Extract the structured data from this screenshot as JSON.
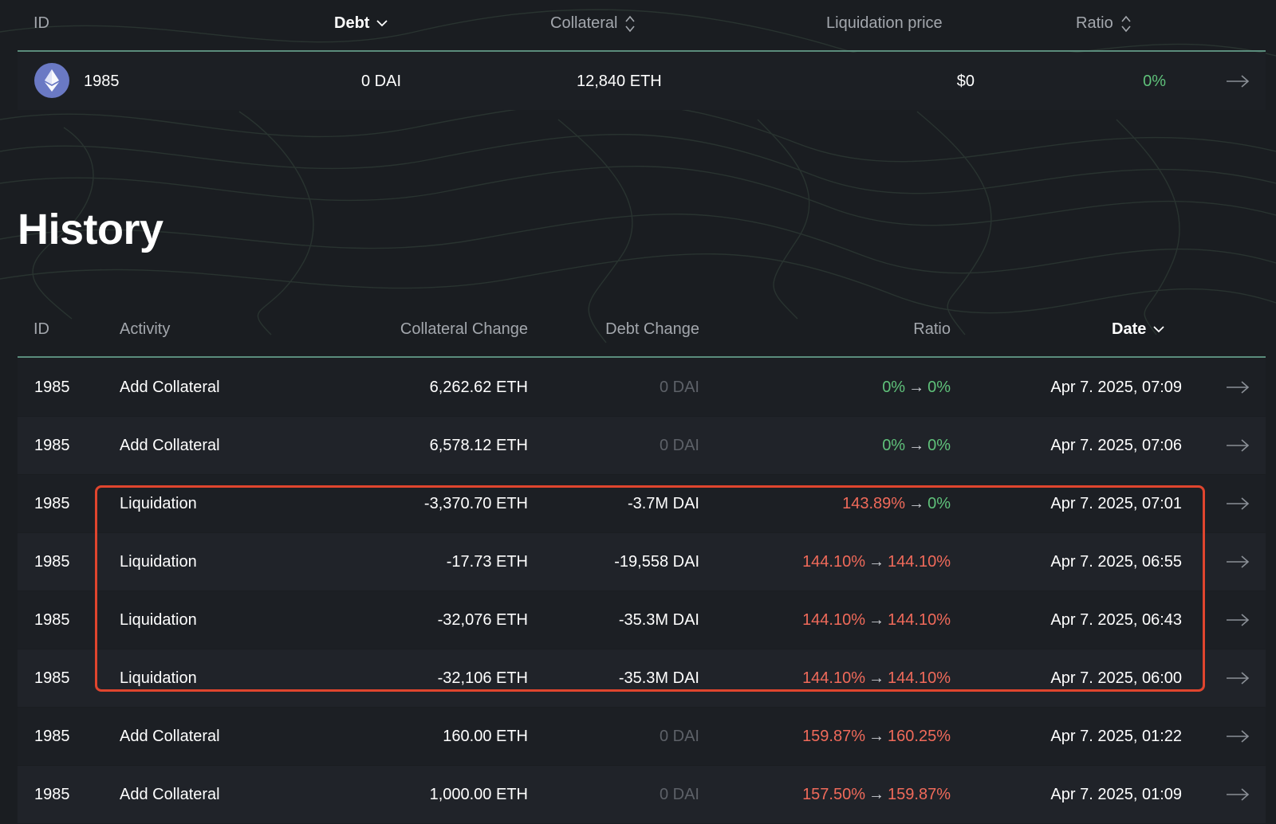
{
  "vaults": {
    "headers": {
      "id": "ID",
      "debt": "Debt",
      "collateral": "Collateral",
      "liquidation_price": "Liquidation price",
      "ratio": "Ratio"
    },
    "row": {
      "id": "1985",
      "debt": "0 DAI",
      "collateral": "12,840 ETH",
      "liquidation_price": "$0",
      "ratio": "0%",
      "icon": "ethereum-icon"
    }
  },
  "history": {
    "title": "History",
    "headers": {
      "id": "ID",
      "activity": "Activity",
      "collateral_change": "Collateral Change",
      "debt_change": "Debt Change",
      "ratio": "Ratio",
      "date": "Date"
    },
    "rows": [
      {
        "id": "1985",
        "activity": "Add Collateral",
        "collateral_change": "6,262.62 ETH",
        "debt_change": "0 DAI",
        "ratio_from": "0%",
        "ratio_to": "0%",
        "date": "Apr 7. 2025, 07:09"
      },
      {
        "id": "1985",
        "activity": "Add Collateral",
        "collateral_change": "6,578.12 ETH",
        "debt_change": "0 DAI",
        "ratio_from": "0%",
        "ratio_to": "0%",
        "date": "Apr 7. 2025, 07:06"
      },
      {
        "id": "1985",
        "activity": "Liquidation",
        "collateral_change": "-3,370.70 ETH",
        "debt_change": "-3.7M DAI",
        "ratio_from": "143.89%",
        "ratio_to": "0%",
        "date": "Apr 7. 2025, 07:01"
      },
      {
        "id": "1985",
        "activity": "Liquidation",
        "collateral_change": "-17.73 ETH",
        "debt_change": "-19,558 DAI",
        "ratio_from": "144.10%",
        "ratio_to": "144.10%",
        "date": "Apr 7. 2025, 06:55"
      },
      {
        "id": "1985",
        "activity": "Liquidation",
        "collateral_change": "-32,076 ETH",
        "debt_change": "-35.3M DAI",
        "ratio_from": "144.10%",
        "ratio_to": "144.10%",
        "date": "Apr 7. 2025, 06:43"
      },
      {
        "id": "1985",
        "activity": "Liquidation",
        "collateral_change": "-32,106 ETH",
        "debt_change": "-35.3M DAI",
        "ratio_from": "144.10%",
        "ratio_to": "144.10%",
        "date": "Apr 7. 2025, 06:00"
      },
      {
        "id": "1985",
        "activity": "Add Collateral",
        "collateral_change": "160.00 ETH",
        "debt_change": "0 DAI",
        "ratio_from": "159.87%",
        "ratio_to": "160.25%",
        "date": "Apr 7. 2025, 01:22"
      },
      {
        "id": "1985",
        "activity": "Add Collateral",
        "collateral_change": "1,000.00 ETH",
        "debt_change": "0 DAI",
        "ratio_from": "157.50%",
        "ratio_to": "159.87%",
        "date": "Apr 7. 2025, 01:09"
      }
    ]
  },
  "colors": {
    "background": "#1a1d21",
    "positive": "#5fc17a",
    "negative": "#f06a5a",
    "muted": "#5d6168",
    "divider": "#5a8c7c",
    "highlight_border": "#e0452e"
  }
}
